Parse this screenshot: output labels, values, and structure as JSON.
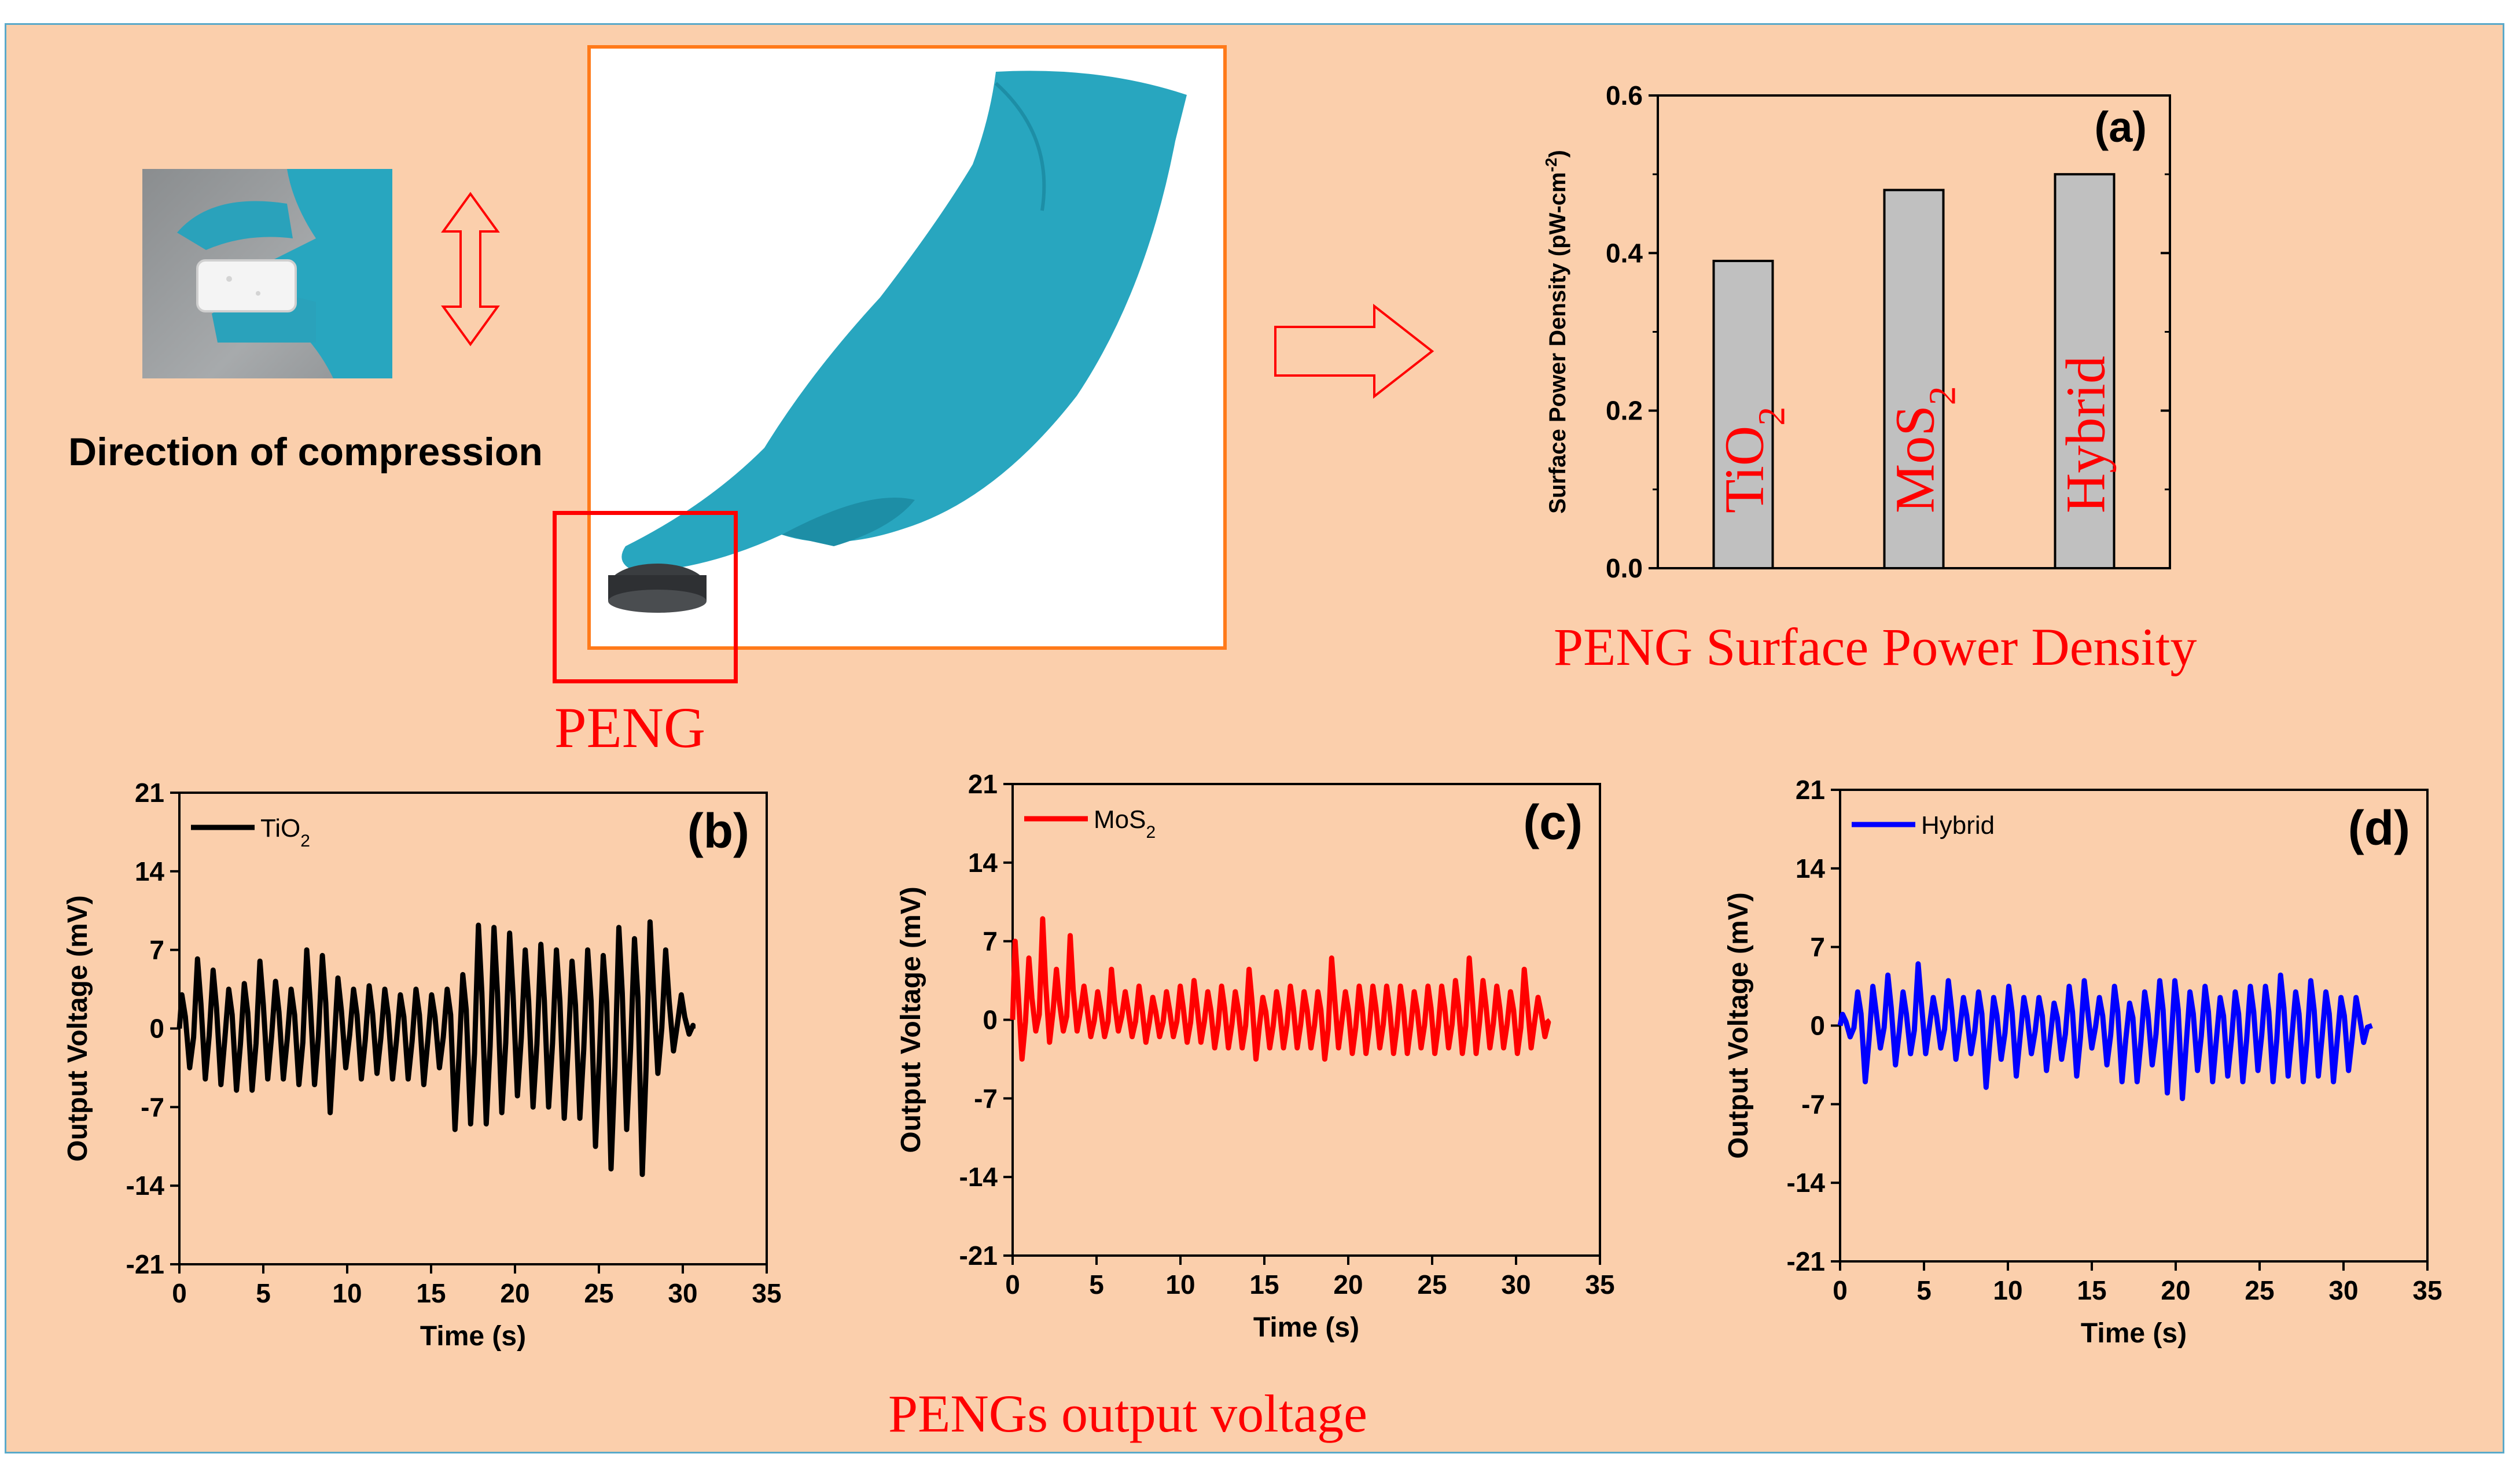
{
  "labels": {
    "compression": "Direction of compression",
    "peng": "PENG",
    "bar_caption": "PENG Surface Power Density",
    "voltage_caption": "PENGs output voltage"
  },
  "colors": {
    "background": "#fbcfac",
    "frame_border": "#5aa9c9",
    "accent_red": "#ff0000",
    "glove": "#28a6bf",
    "bar_fill": "#c0c0c0",
    "photo_frame": "#ff7a1a"
  },
  "chart_data": [
    {
      "id": "a",
      "type": "bar",
      "panel_label": "(a)",
      "categories": [
        "TiO2",
        "MoS2",
        "Hybrid"
      ],
      "category_labels": [
        [
          "TiO",
          "2"
        ],
        [
          "MoS",
          "2"
        ],
        [
          "Hybrid",
          ""
        ]
      ],
      "values": [
        0.39,
        0.48,
        0.5
      ],
      "ylabel": "Surface Power Density (pW-cm",
      "ylabel_sup": "-2",
      "ylabel_close": ")",
      "ylim": [
        0,
        0.6
      ],
      "yticks": [
        "0.0",
        "0.2",
        "0.4",
        "0.6"
      ],
      "ytick_values": [
        0,
        0.2,
        0.4,
        0.6
      ]
    },
    {
      "id": "b",
      "type": "line",
      "panel_label": "(b)",
      "legend": "TiO",
      "legend_sub": "2",
      "color": "#000000",
      "xlabel": "Time (s)",
      "ylabel": "Output Voltage (mV)",
      "xlim": [
        0,
        35
      ],
      "ylim": [
        -21,
        21
      ],
      "xticks": [
        0,
        5,
        10,
        15,
        20,
        25,
        30,
        35
      ],
      "yticks": [
        -21,
        -14,
        -7,
        0,
        7,
        14,
        21
      ],
      "x_end": 30.6,
      "peaks": [
        3.0,
        6.2,
        5.2,
        3.5,
        4.0,
        6.0,
        4.2,
        3.5,
        7.0,
        6.5,
        4.5,
        3.5,
        3.8,
        3.5,
        3.0,
        3.5,
        3.0,
        3.5,
        4.8,
        9.2,
        9.0,
        8.5,
        7.0,
        7.5,
        7.0,
        6.0,
        7.0,
        6.5,
        9.0,
        8.0,
        9.5,
        7.0,
        3.0
      ],
      "troughs": [
        -3.5,
        -4.5,
        -5.0,
        -5.5,
        -5.5,
        -4.5,
        -4.5,
        -5.0,
        -5.0,
        -7.5,
        -3.5,
        -4.5,
        -4.0,
        -4.5,
        -4.5,
        -5.0,
        -3.5,
        -9.0,
        -8.5,
        -8.5,
        -7.5,
        -6.0,
        -7.0,
        -7.0,
        -8.0,
        -8.0,
        -10.5,
        -12.5,
        -9.0,
        -13.0,
        -4.0,
        -2.0,
        -0.5
      ],
      "step": 0.93
    },
    {
      "id": "c",
      "type": "line",
      "panel_label": "(c)",
      "legend": "MoS",
      "legend_sub": "2",
      "color": "#ff0000",
      "xlabel": "Time (s)",
      "ylabel": "Output Voltage (mV)",
      "xlim": [
        0,
        35
      ],
      "ylim": [
        -21,
        21
      ],
      "xticks": [
        0,
        5,
        10,
        15,
        20,
        25,
        30,
        35
      ],
      "yticks": [
        -21,
        -14,
        -7,
        0,
        7,
        14,
        21
      ],
      "x_end": 31.8,
      "peaks": [
        7.0,
        5.5,
        9.0,
        4.5,
        7.5,
        3.0,
        2.5,
        4.5,
        2.5,
        3.0,
        2.0,
        2.5,
        3.0,
        3.5,
        2.5,
        3.0,
        2.5,
        4.5,
        2.0,
        2.5,
        3.0,
        2.5,
        2.5,
        5.5,
        2.5,
        3.0,
        3.0,
        3.0,
        3.0,
        2.5,
        3.0,
        3.0,
        3.5,
        5.5,
        3.5,
        3.0,
        2.5,
        4.5,
        2.0
      ],
      "troughs": [
        -3.5,
        -1.0,
        -2.0,
        -1.0,
        -1.0,
        -1.5,
        -1.5,
        -1.0,
        -1.5,
        -2.0,
        -1.5,
        -1.5,
        -2.0,
        -2.0,
        -2.5,
        -2.5,
        -2.5,
        -3.5,
        -2.5,
        -2.5,
        -2.5,
        -2.5,
        -3.5,
        -2.5,
        -3.0,
        -3.0,
        -2.5,
        -3.0,
        -3.0,
        -2.5,
        -3.0,
        -2.5,
        -3.0,
        -3.0,
        -2.5,
        -2.5,
        -3.0,
        -2.5,
        -1.5
      ],
      "step": 0.82
    },
    {
      "id": "d",
      "type": "line",
      "panel_label": "(d)",
      "legend": "Hybrid",
      "legend_sub": "",
      "color": "#0000ff",
      "xlabel": "Time (s)",
      "ylabel": "Output Voltage (mV)",
      "xlim": [
        0,
        35
      ],
      "ylim": [
        -21,
        21
      ],
      "xticks": [
        0,
        5,
        10,
        15,
        20,
        25,
        30,
        35
      ],
      "yticks": [
        -21,
        -14,
        -7,
        0,
        7,
        14,
        21
      ],
      "x_end": 31.7,
      "peaks": [
        1.0,
        3.0,
        3.5,
        4.5,
        3.0,
        5.5,
        2.5,
        4.0,
        2.5,
        3.0,
        2.5,
        3.5,
        2.5,
        2.5,
        2.0,
        3.5,
        4.0,
        2.5,
        3.5,
        2.0,
        3.0,
        4.0,
        4.0,
        3.0,
        3.5,
        2.5,
        3.0,
        3.5,
        3.5,
        4.5,
        3.0,
        4.0,
        3.0,
        2.5,
        2.5
      ],
      "troughs": [
        -1.0,
        -5.0,
        -2.0,
        -3.5,
        -2.5,
        -2.5,
        -2.0,
        -3.0,
        -2.5,
        -5.5,
        -3.0,
        -4.5,
        -2.5,
        -4.0,
        -3.0,
        -4.5,
        -2.0,
        -3.5,
        -5.0,
        -5.0,
        -3.5,
        -6.0,
        -6.5,
        -4.0,
        -5.0,
        -4.5,
        -5.0,
        -4.0,
        -5.0,
        -4.5,
        -5.0,
        -4.5,
        -5.0,
        -4.0,
        -1.5
      ],
      "step": 0.9
    }
  ]
}
